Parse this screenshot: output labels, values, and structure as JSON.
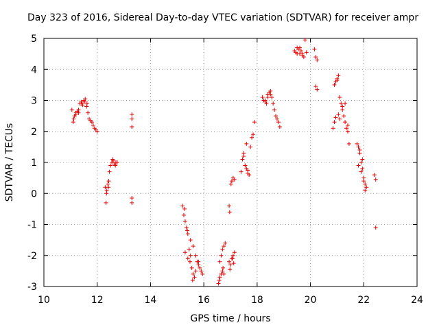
{
  "chart_data": {
    "type": "scatter",
    "title": "Day 323 of 2016, Sidereal Day-to-day VTEC variation (SDTVAR) for receiver ampr",
    "xlabel": "GPS time / hours",
    "ylabel": "SDTVAR / TECUs",
    "xlim": [
      10,
      24
    ],
    "ylim": [
      -3,
      5
    ],
    "xticks": [
      10,
      12,
      14,
      16,
      18,
      20,
      22,
      24
    ],
    "yticks": [
      -3,
      -2,
      -1,
      0,
      1,
      2,
      3,
      4,
      5
    ],
    "grid": true,
    "marker": "+",
    "color": "#e00000",
    "series": [
      {
        "name": "SDTVAR",
        "x": [
          11.05,
          11.1,
          11.15,
          11.2,
          11.25,
          11.3,
          11.35,
          11.4,
          11.45,
          11.5,
          11.55,
          11.6,
          11.65,
          11.7,
          11.75,
          11.8,
          11.85,
          11.9,
          11.95,
          12.0,
          11.12,
          11.2,
          11.3,
          11.42,
          11.52,
          11.62,
          12.3,
          12.33,
          12.36,
          12.4,
          12.43,
          12.46,
          12.5,
          12.55,
          12.6,
          12.65,
          12.7,
          12.75,
          12.35,
          12.42,
          12.58,
          12.68,
          13.3,
          13.3,
          13.3,
          13.3,
          13.3,
          15.2,
          15.25,
          15.3,
          15.35,
          15.4,
          15.45,
          15.5,
          15.55,
          15.6,
          15.65,
          15.7,
          15.75,
          15.8,
          15.85,
          15.9,
          15.95,
          15.3,
          15.4,
          15.5,
          15.6,
          15.7,
          15.8,
          15.28,
          15.38,
          15.48,
          15.58,
          16.55,
          16.6,
          16.65,
          16.7,
          16.75,
          16.8,
          16.6,
          16.7,
          16.65,
          16.75,
          16.58,
          16.72,
          16.95,
          17.0,
          17.05,
          17.1,
          17.15,
          16.98,
          17.08,
          17.12,
          16.95,
          16.97,
          17.02,
          17.05,
          17.1,
          17.15,
          17.4,
          17.45,
          17.5,
          17.55,
          17.6,
          17.65,
          17.7,
          17.75,
          17.8,
          17.85,
          17.9,
          17.5,
          17.6,
          17.55,
          17.65,
          18.2,
          18.25,
          18.3,
          18.35,
          18.4,
          18.45,
          18.5,
          18.55,
          18.6,
          18.65,
          18.7,
          18.75,
          18.8,
          18.85,
          18.3,
          18.4,
          18.5,
          19.4,
          19.45,
          19.5,
          19.55,
          19.6,
          19.65,
          19.7,
          19.75,
          19.8,
          19.5,
          19.6,
          19.7,
          19.85,
          20.15,
          20.2,
          20.25,
          20.2,
          20.25,
          20.85,
          20.9,
          20.95,
          21.0,
          21.05,
          21.1,
          21.15,
          21.2,
          21.25,
          21.3,
          21.35,
          21.4,
          21.45,
          20.9,
          21.0,
          21.1,
          21.2,
          21.3,
          21.4,
          20.95,
          21.05,
          21.75,
          21.8,
          21.85,
          21.9,
          21.95,
          22.0,
          22.05,
          22.1,
          21.8,
          21.9,
          22.0,
          21.85,
          21.95,
          22.05,
          22.4,
          22.45,
          22.45
        ],
        "y": [
          2.7,
          2.3,
          2.5,
          2.6,
          2.65,
          2.7,
          2.9,
          2.95,
          2.85,
          3.0,
          3.05,
          2.8,
          2.6,
          2.4,
          2.35,
          2.3,
          2.2,
          2.1,
          2.05,
          2.0,
          2.4,
          2.55,
          2.6,
          2.9,
          2.95,
          2.9,
          0.2,
          -0.3,
          0.1,
          0.3,
          0.4,
          0.7,
          0.9,
          1.0,
          1.05,
          0.95,
          1.0,
          1.0,
          0.0,
          0.2,
          1.1,
          0.9,
          2.55,
          2.4,
          2.15,
          -0.15,
          -0.3,
          -0.4,
          -0.7,
          -0.9,
          -1.1,
          -1.3,
          -1.8,
          -2.0,
          -2.4,
          -2.6,
          -2.7,
          -2.5,
          -2.2,
          -2.3,
          -2.4,
          -2.5,
          -2.6,
          -1.9,
          -2.1,
          -1.5,
          -1.7,
          -2.0,
          -2.2,
          -0.5,
          -1.2,
          -2.2,
          -2.8,
          -2.9,
          -2.2,
          -2.0,
          -1.8,
          -1.7,
          -1.6,
          -2.7,
          -2.5,
          -2.6,
          -2.6,
          -2.8,
          -2.4,
          -2.2,
          -2.3,
          -2.1,
          -2.0,
          -1.9,
          -2.45,
          -2.1,
          -2.25,
          -0.4,
          -0.6,
          0.3,
          0.4,
          0.5,
          0.45,
          0.7,
          1.1,
          1.2,
          0.9,
          0.8,
          0.65,
          0.6,
          1.5,
          1.8,
          1.9,
          2.3,
          1.3,
          1.6,
          0.9,
          0.75,
          3.1,
          3.0,
          2.95,
          2.9,
          3.2,
          3.25,
          3.3,
          3.1,
          2.9,
          2.7,
          2.5,
          2.4,
          2.3,
          2.15,
          3.0,
          3.1,
          3.2,
          4.6,
          4.55,
          4.5,
          4.65,
          4.7,
          4.6,
          4.45,
          4.4,
          4.95,
          4.7,
          4.5,
          4.5,
          4.55,
          4.65,
          4.4,
          4.3,
          3.45,
          3.35,
          2.1,
          2.3,
          3.6,
          3.7,
          3.8,
          3.1,
          2.9,
          2.7,
          2.5,
          2.3,
          2.1,
          2.0,
          1.6,
          3.5,
          3.65,
          2.4,
          2.8,
          2.9,
          2.2,
          2.45,
          2.55,
          1.6,
          1.5,
          1.3,
          1.0,
          0.8,
          0.5,
          0.3,
          0.2,
          0.9,
          0.7,
          0.4,
          1.4,
          1.1,
          0.1,
          0.6,
          0.45,
          -1.1
        ]
      }
    ]
  }
}
